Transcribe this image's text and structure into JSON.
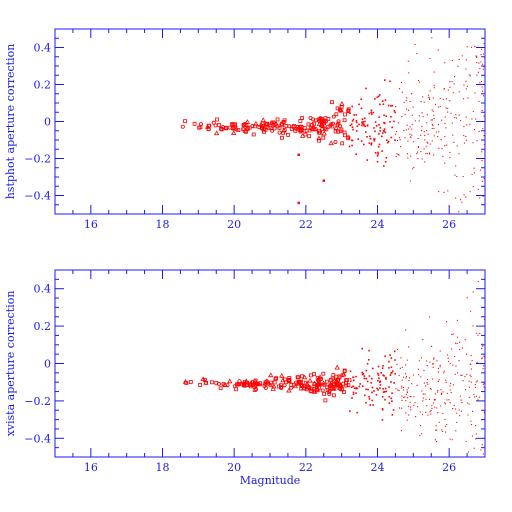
{
  "colors": {
    "axis": "#1a1aff",
    "points": "#ff0000",
    "background": "#ffffff"
  },
  "chart_data": [
    {
      "type": "scatter",
      "ylabel": "hstphot aperture correction",
      "xlabel": "",
      "xlim": [
        15,
        27
      ],
      "ylim": [
        -0.5,
        0.5
      ],
      "x_ticks": [
        16,
        18,
        20,
        22,
        24,
        26
      ],
      "y_ticks": [
        0.4,
        0.2,
        0,
        -0.2,
        -0.4
      ],
      "trend": {
        "x": [
          18.5,
          20,
          21,
          22,
          23,
          24,
          25,
          26,
          27
        ],
        "y": [
          -0.02,
          -0.03,
          -0.03,
          -0.03,
          -0.02,
          -0.01,
          0.0,
          0.02,
          0.04
        ],
        "scatter": [
          0.01,
          0.015,
          0.02,
          0.03,
          0.06,
          0.1,
          0.16,
          0.22,
          0.28
        ]
      },
      "outliers": [
        {
          "x": 21.8,
          "y": -0.44
        },
        {
          "x": 22.5,
          "y": -0.32
        },
        {
          "x": 21.8,
          "y": -0.18
        }
      ]
    },
    {
      "type": "scatter",
      "ylabel": "xvista aperture correction",
      "xlabel": "Magnitude",
      "xlim": [
        15,
        27
      ],
      "ylim": [
        -0.5,
        0.5
      ],
      "x_ticks": [
        16,
        18,
        20,
        22,
        24,
        26
      ],
      "y_ticks": [
        0.4,
        0.2,
        0,
        -0.2,
        -0.4
      ],
      "trend": {
        "x": [
          18.5,
          20,
          21,
          22,
          23,
          24,
          25,
          26,
          27
        ],
        "y": [
          -0.11,
          -0.11,
          -0.11,
          -0.11,
          -0.11,
          -0.12,
          -0.13,
          -0.14,
          -0.15
        ],
        "scatter": [
          0.01,
          0.012,
          0.015,
          0.02,
          0.04,
          0.08,
          0.13,
          0.18,
          0.25
        ]
      },
      "outliers": []
    }
  ]
}
